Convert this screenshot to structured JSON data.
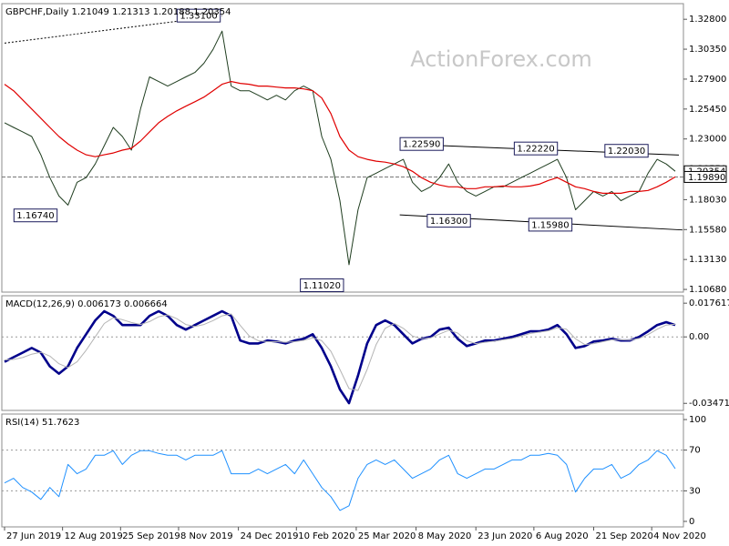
{
  "chart_data": [
    {
      "type": "line",
      "title": "GBPCHF,Daily  1.21049 1.21313 1.20188 1.20354",
      "watermark": "ActionForex.com",
      "x": [
        0,
        5,
        10,
        15,
        20,
        25,
        30,
        35,
        40,
        45,
        50,
        55,
        60,
        65,
        70,
        75,
        80,
        85,
        90,
        95,
        100,
        105,
        110,
        115,
        120,
        125,
        130,
        135,
        140,
        145,
        150,
        155,
        160,
        165,
        170,
        175,
        180,
        185,
        190,
        195,
        200,
        205,
        210,
        215,
        220,
        225,
        230,
        235,
        240,
        245,
        250,
        255,
        260,
        265,
        270,
        275,
        280,
        285,
        290,
        295,
        300,
        305,
        310,
        315,
        320,
        325,
        330,
        335,
        340,
        345,
        350,
        355,
        360,
        365,
        370
      ],
      "xlim": [
        -1,
        374
      ],
      "ylim": [
        1.1046,
        1.3408
      ],
      "yticks": [
        {
          "value": 1.328,
          "label": "1.32800"
        },
        {
          "value": 1.3035,
          "label": "1.30350"
        },
        {
          "value": 1.279,
          "label": "1.27900"
        },
        {
          "value": 1.2545,
          "label": "1.25450"
        },
        {
          "value": 1.23,
          "label": "1.23000"
        },
        {
          "value": 1.2055,
          "label": "1.20550"
        },
        {
          "value": 1.1803,
          "label": "1.18030"
        },
        {
          "value": 1.1558,
          "label": "1.15580"
        },
        {
          "value": 1.1313,
          "label": "1.13130"
        },
        {
          "value": 1.1068,
          "label": "1.10680"
        }
      ],
      "series": [
        {
          "color": "#1f3d1f",
          "values": [
            1.2433,
            1.2395,
            1.2358,
            1.232,
            1.217,
            1.1983,
            1.1833,
            1.1758,
            1.1945,
            1.1983,
            1.2095,
            1.2245,
            1.2395,
            1.232,
            1.2208,
            1.2545,
            1.2808,
            1.277,
            1.2733,
            1.277,
            1.2808,
            1.2845,
            1.292,
            1.3033,
            1.3183,
            1.2733,
            1.2695,
            1.2695,
            1.2658,
            1.262,
            1.2658,
            1.262,
            1.2695,
            1.2733,
            1.2695,
            1.232,
            1.2133,
            1.1795,
            1.127,
            1.172,
            1.1983,
            1.202,
            1.2058,
            1.2095,
            1.2133,
            1.1945,
            1.187,
            1.1908,
            1.1983,
            1.2095,
            1.1945,
            1.187,
            1.1833,
            1.187,
            1.1908,
            1.1908,
            1.1945,
            1.1983,
            1.202,
            1.2058,
            1.2095,
            1.2133,
            1.1983,
            1.172,
            1.1795,
            1.187,
            1.1833,
            1.187,
            1.1795,
            1.1833,
            1.187,
            1.202,
            1.2133,
            1.2095,
            1.20354
          ]
        },
        {
          "color": "#e00000",
          "values": [
            1.2748,
            1.2695,
            1.262,
            1.2545,
            1.247,
            1.2395,
            1.232,
            1.226,
            1.2208,
            1.217,
            1.2155,
            1.217,
            1.2185,
            1.2208,
            1.2223,
            1.2283,
            1.2358,
            1.2433,
            1.2485,
            1.253,
            1.2568,
            1.2605,
            1.2643,
            1.2695,
            1.2748,
            1.277,
            1.2755,
            1.2748,
            1.2733,
            1.2733,
            1.2725,
            1.2718,
            1.2718,
            1.271,
            1.2695,
            1.2635,
            1.2508,
            1.232,
            1.2208,
            1.2155,
            1.2133,
            1.2118,
            1.211,
            1.2095,
            1.2073,
            1.2035,
            1.1983,
            1.1945,
            1.1923,
            1.1908,
            1.1908,
            1.1893,
            1.1893,
            1.1908,
            1.1908,
            1.1915,
            1.1908,
            1.1908,
            1.1915,
            1.193,
            1.196,
            1.1983,
            1.1945,
            1.1908,
            1.1893,
            1.187,
            1.1855,
            1.1855,
            1.1855,
            1.187,
            1.187,
            1.1878,
            1.1908,
            1.1945,
            1.1989
          ]
        }
      ],
      "annotations": [
        {
          "x": 120,
          "value": 1.331,
          "label": "1.33100"
        },
        {
          "x": 30,
          "value": 1.1674,
          "label": "1.16740"
        },
        {
          "x": 188,
          "value": 1.1102,
          "label": "1.11020"
        },
        {
          "x": 243,
          "value": 1.2259,
          "label": "1.22590"
        },
        {
          "x": 258,
          "value": 1.163,
          "label": "1.16300"
        },
        {
          "x": 306,
          "value": 1.2222,
          "label": "1.22220"
        },
        {
          "x": 314,
          "value": 1.1598,
          "label": "1.15980"
        },
        {
          "x": 356,
          "value": 1.2203,
          "label": "1.22030"
        }
      ],
      "trendlines": [
        {
          "x": [
            0,
            120
          ],
          "y": [
            1.3085,
            1.331
          ],
          "dashed": true
        },
        {
          "x": [
            218,
            372
          ],
          "y": [
            1.2259,
            1.2168
          ],
          "dashed": false
        },
        {
          "x": [
            218,
            374
          ],
          "y": [
            1.1678,
            1.1555
          ],
          "dashed": false
        }
      ],
      "price_markers": [
        {
          "value": 1.20354,
          "label": "1.20354"
        },
        {
          "value": 1.1989,
          "label": "1.19890",
          "line": true
        }
      ]
    },
    {
      "type": "line",
      "title": "MACD(12,26,9) 0.006173 0.006664",
      "x": [
        0,
        5,
        10,
        15,
        20,
        25,
        30,
        35,
        40,
        45,
        50,
        55,
        60,
        65,
        70,
        75,
        80,
        85,
        90,
        95,
        100,
        105,
        110,
        115,
        120,
        125,
        130,
        135,
        140,
        145,
        150,
        155,
        160,
        165,
        170,
        175,
        180,
        185,
        190,
        195,
        200,
        205,
        210,
        215,
        220,
        225,
        230,
        235,
        240,
        245,
        250,
        255,
        260,
        265,
        270,
        275,
        280,
        285,
        290,
        295,
        300,
        305,
        310,
        315,
        320,
        325,
        330,
        335,
        340,
        345,
        350,
        355,
        360,
        365,
        370
      ],
      "xlim": [
        -1,
        374
      ],
      "ylim": [
        -0.0384,
        0.0215
      ],
      "yticks": [
        0.017617,
        {
          "value": 0,
          "label": "0.00"
        },
        -0.034711
      ],
      "reference_lines": [
        0
      ],
      "series": [
        {
          "color": "#00008b",
          "values": [
            -0.013,
            -0.0106,
            -0.0082,
            -0.0058,
            -0.0082,
            -0.0154,
            -0.0192,
            -0.0154,
            -0.0058,
            0.0014,
            0.0086,
            0.0134,
            0.011,
            0.0062,
            0.0062,
            0.0062,
            0.011,
            0.0134,
            0.011,
            0.0062,
            0.0038,
            0.0062,
            0.0086,
            0.011,
            0.0134,
            0.011,
            -0.0019,
            -0.0034,
            -0.0034,
            -0.0019,
            -0.0024,
            -0.0034,
            -0.0019,
            -0.001,
            0.0014,
            -0.0058,
            -0.0154,
            -0.0274,
            -0.0346,
            -0.0202,
            -0.0034,
            0.0062,
            0.0086,
            0.0062,
            0.0014,
            -0.0034,
            -0.001,
            0.0,
            0.0038,
            0.0048,
            -0.001,
            -0.0048,
            -0.0034,
            -0.0019,
            -0.0019,
            -0.001,
            0.0,
            0.0014,
            0.0029,
            0.0029,
            0.0038,
            0.0062,
            0.0014,
            -0.0058,
            -0.0048,
            -0.0024,
            -0.0019,
            -0.001,
            -0.0019,
            -0.0019,
            0.0,
            0.0029,
            0.0062,
            0.0077,
            0.006173
          ]
        },
        {
          "color": "#b4b4b4",
          "values": [
            -0.012,
            -0.0118,
            -0.0108,
            -0.009,
            -0.008,
            -0.01,
            -0.014,
            -0.016,
            -0.013,
            -0.007,
            0.0,
            0.007,
            0.01,
            0.009,
            0.0075,
            0.0065,
            0.008,
            0.0105,
            0.0115,
            0.0095,
            0.0065,
            0.0055,
            0.0065,
            0.0085,
            0.011,
            0.012,
            0.006,
            0.0005,
            -0.002,
            -0.0025,
            -0.0025,
            -0.0028,
            -0.0025,
            -0.0018,
            -0.0005,
            -0.002,
            -0.0075,
            -0.017,
            -0.027,
            -0.028,
            -0.017,
            -0.004,
            0.0045,
            0.007,
            0.0045,
            0.0005,
            -0.001,
            -0.0005,
            0.0015,
            0.0035,
            0.002,
            -0.002,
            -0.0035,
            -0.0028,
            -0.0022,
            -0.0015,
            -0.0008,
            0.0004,
            0.0018,
            0.0025,
            0.0032,
            0.0048,
            0.004,
            -0.001,
            -0.004,
            -0.0035,
            -0.0025,
            -0.0015,
            -0.0015,
            -0.0017,
            -0.0008,
            0.0012,
            0.004,
            0.0062,
            0.006664
          ]
        }
      ]
    },
    {
      "type": "line",
      "title": "RSI(14) 51.7623",
      "x": [
        0,
        5,
        10,
        15,
        20,
        25,
        30,
        35,
        40,
        45,
        50,
        55,
        60,
        65,
        70,
        75,
        80,
        85,
        90,
        95,
        100,
        105,
        110,
        115,
        120,
        125,
        130,
        135,
        140,
        145,
        150,
        155,
        160,
        165,
        170,
        175,
        180,
        185,
        190,
        195,
        200,
        205,
        210,
        215,
        220,
        225,
        230,
        235,
        240,
        245,
        250,
        255,
        260,
        265,
        270,
        275,
        280,
        285,
        290,
        295,
        300,
        305,
        310,
        315,
        320,
        325,
        330,
        335,
        340,
        345,
        350,
        355,
        360,
        365,
        370
      ],
      "xlim": [
        -1,
        374
      ],
      "ylim": [
        -5.4,
        105.4
      ],
      "yticks": [
        100,
        70,
        30,
        0
      ],
      "reference_lines": [
        70,
        30
      ],
      "xticks": [
        {
          "value": 0,
          "label": "27 Jun 2019"
        },
        {
          "value": 32,
          "label": "12 Aug 2019"
        },
        {
          "value": 64,
          "label": "25 Sep 2019"
        },
        {
          "value": 96,
          "label": "8 Nov 2019"
        },
        {
          "value": 129,
          "label": "24 Dec 2019"
        },
        {
          "value": 161,
          "label": "10 Feb 2020"
        },
        {
          "value": 194,
          "label": "25 Mar 2020"
        },
        {
          "value": 227,
          "label": "8 May 2020"
        },
        {
          "value": 260,
          "label": "23 Jun 2020"
        },
        {
          "value": 292,
          "label": "6 Aug 2020"
        },
        {
          "value": 325,
          "label": "21 Sep 2020"
        },
        {
          "value": 357,
          "label": "4 Nov 2020"
        }
      ],
      "series": [
        {
          "color": "#1e90ff",
          "values": [
            37.8,
            42.3,
            33.3,
            28.8,
            21.6,
            33.3,
            24.3,
            55.9,
            46.8,
            51.4,
            64.9,
            64.9,
            69.4,
            55.9,
            64.9,
            69.4,
            69.4,
            66.7,
            64.9,
            64.9,
            60.4,
            64.9,
            64.9,
            64.9,
            69.4,
            46.8,
            46.8,
            46.8,
            51.4,
            46.8,
            51.4,
            55.9,
            46.8,
            60.4,
            46.8,
            33.3,
            24.3,
            10.8,
            15.3,
            42.3,
            55.9,
            60.4,
            55.9,
            60.4,
            51.4,
            42.3,
            46.8,
            51.4,
            60.4,
            64.9,
            46.8,
            42.3,
            46.8,
            51.4,
            51.4,
            55.9,
            60.4,
            60.4,
            64.9,
            64.9,
            66.7,
            64.9,
            55.9,
            28.8,
            42.3,
            51.4,
            51.4,
            55.9,
            42.3,
            46.8,
            55.9,
            60.4,
            69.4,
            64.9,
            51.7623
          ]
        }
      ]
    }
  ]
}
